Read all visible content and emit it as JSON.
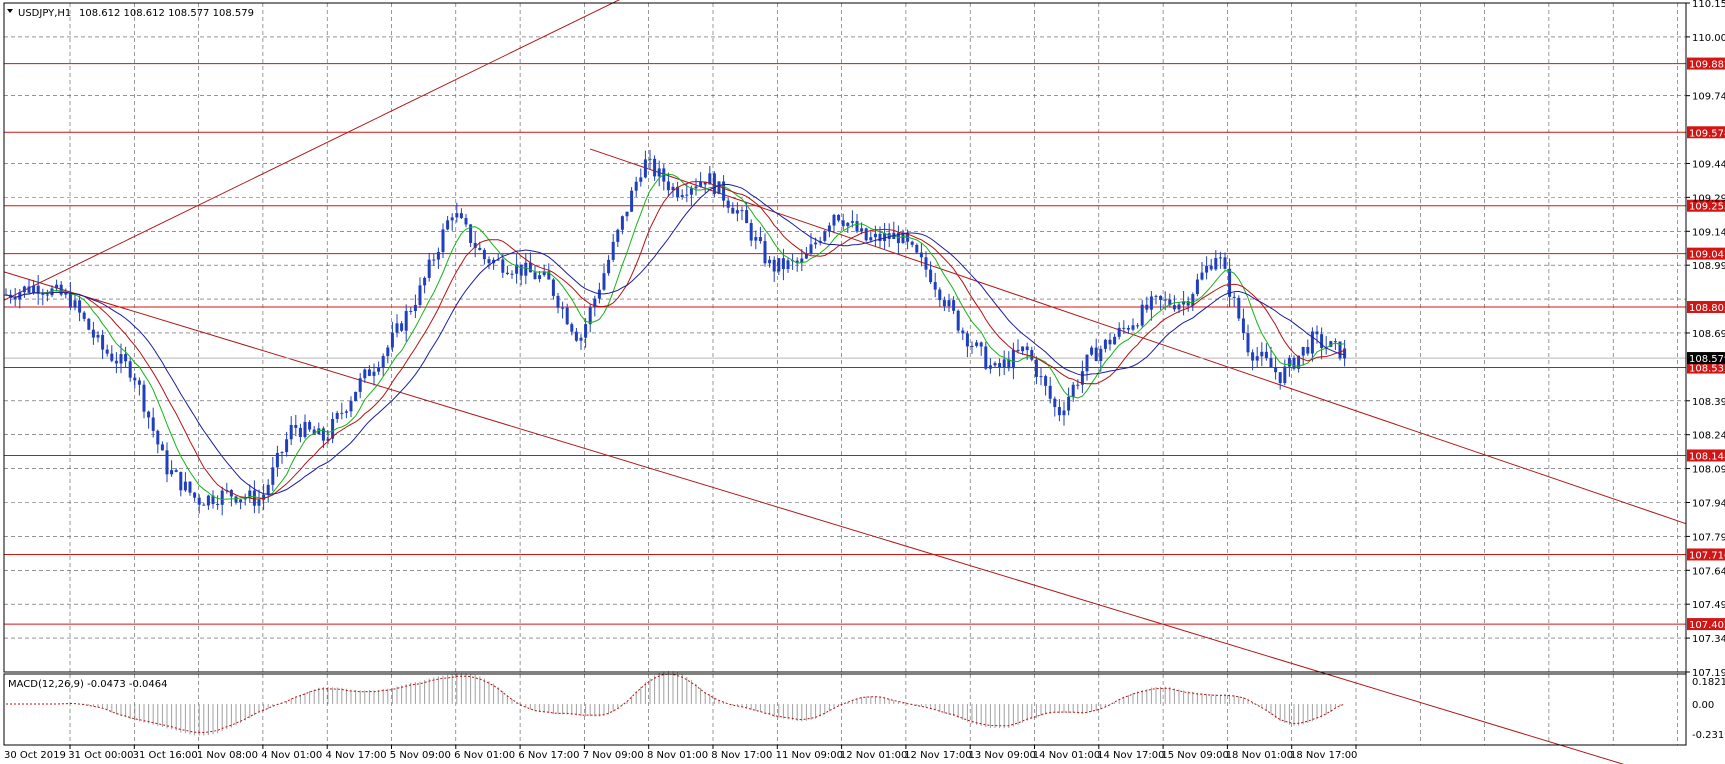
{
  "header": {
    "symbol": "USDJPY,H1",
    "ohlc": "108.612 108.612 108.577 108.579"
  },
  "macd": {
    "label": "MACD(12,26,9) -0.0473 -0.0464",
    "scale_top": "0.1821",
    "scale_mid": "0.00",
    "scale_bottom": "-0.2319"
  },
  "colors": {
    "candle": "#1f3fbf",
    "ma_fast": "#17b417",
    "ma_mid": "#b41414",
    "ma_slow": "#1a1ea0",
    "level_line": "#d11515",
    "trend_line": "#b01818",
    "level_tag": "#d11515",
    "price_tag": "#000000",
    "grid": "#555555"
  },
  "chart_data": {
    "type": "candlestick",
    "symbol": "USDJPY,H1",
    "ylim": [
      107.19,
      110.15
    ],
    "price_ticks": [
      110.15,
      110.0,
      109.74,
      109.44,
      109.29,
      109.14,
      108.99,
      108.84,
      108.69,
      108.39,
      108.24,
      108.09,
      107.94,
      107.79,
      107.64,
      107.49,
      107.34,
      107.19
    ],
    "price_tick_labels": [
      "110.150",
      "110.000",
      "109.740",
      "109.440",
      "109.290",
      "109.140",
      "108.990",
      "108.840",
      "108.690",
      "108.390",
      "108.240",
      "108.090",
      "107.940",
      "107.790",
      "107.640",
      "107.490",
      "107.340",
      "107.190"
    ],
    "levels": [
      109.882,
      109.578,
      109.253,
      109.041,
      108.805,
      108.537,
      108.148,
      107.71,
      107.402
    ],
    "level_labels": [
      "109.882",
      "109.578",
      "109.253",
      "109.041",
      "108.805",
      "108.537",
      "108.148",
      "107.710",
      "107.402"
    ],
    "current_price": 108.579,
    "current_price_label": "108.579",
    "x_labels": [
      "30 Oct 2019",
      "31 Oct 00:00",
      "31 Oct 16:00",
      "1 Nov 08:00",
      "4 Nov 01:00",
      "4 Nov 17:00",
      "5 Nov 09:00",
      "6 Nov 01:00",
      "6 Nov 17:00",
      "7 Nov 09:00",
      "8 Nov 01:00",
      "8 Nov 17:00",
      "11 Nov 09:00",
      "12 Nov 01:00",
      "12 Nov 17:00",
      "13 Nov 09:00",
      "14 Nov 01:00",
      "14 Nov 17:00",
      "15 Nov 09:00",
      "18 Nov 01:00",
      "18 Nov 17:00"
    ],
    "close_path": [
      108.86,
      108.9,
      108.84,
      108.62,
      108.52,
      108.1,
      107.95,
      107.98,
      107.95,
      108.28,
      108.22,
      108.45,
      108.63,
      108.88,
      109.23,
      109.02,
      108.98,
      108.92,
      108.66,
      109.05,
      109.45,
      109.32,
      109.38,
      109.22,
      108.98,
      109.0,
      109.23,
      109.1,
      109.12,
      108.95,
      108.7,
      108.52,
      108.62,
      108.33,
      108.58,
      108.7,
      108.82,
      108.83,
      109.05,
      108.62,
      108.5,
      108.66,
      108.6
    ],
    "trend_lines": [
      {
        "from": [
          "30 Oct 2019",
          108.9
        ],
        "to": [
          "7 Nov 09:00",
          110.15
        ]
      },
      {
        "from": [
          "30 Oct 2019",
          108.92
        ],
        "to": [
          "18 Nov 17:00",
          107.19
        ]
      },
      {
        "from": [
          "7 Nov 09:00",
          109.47
        ],
        "to": [
          "18 Nov 17:00",
          108.4
        ]
      }
    ]
  }
}
